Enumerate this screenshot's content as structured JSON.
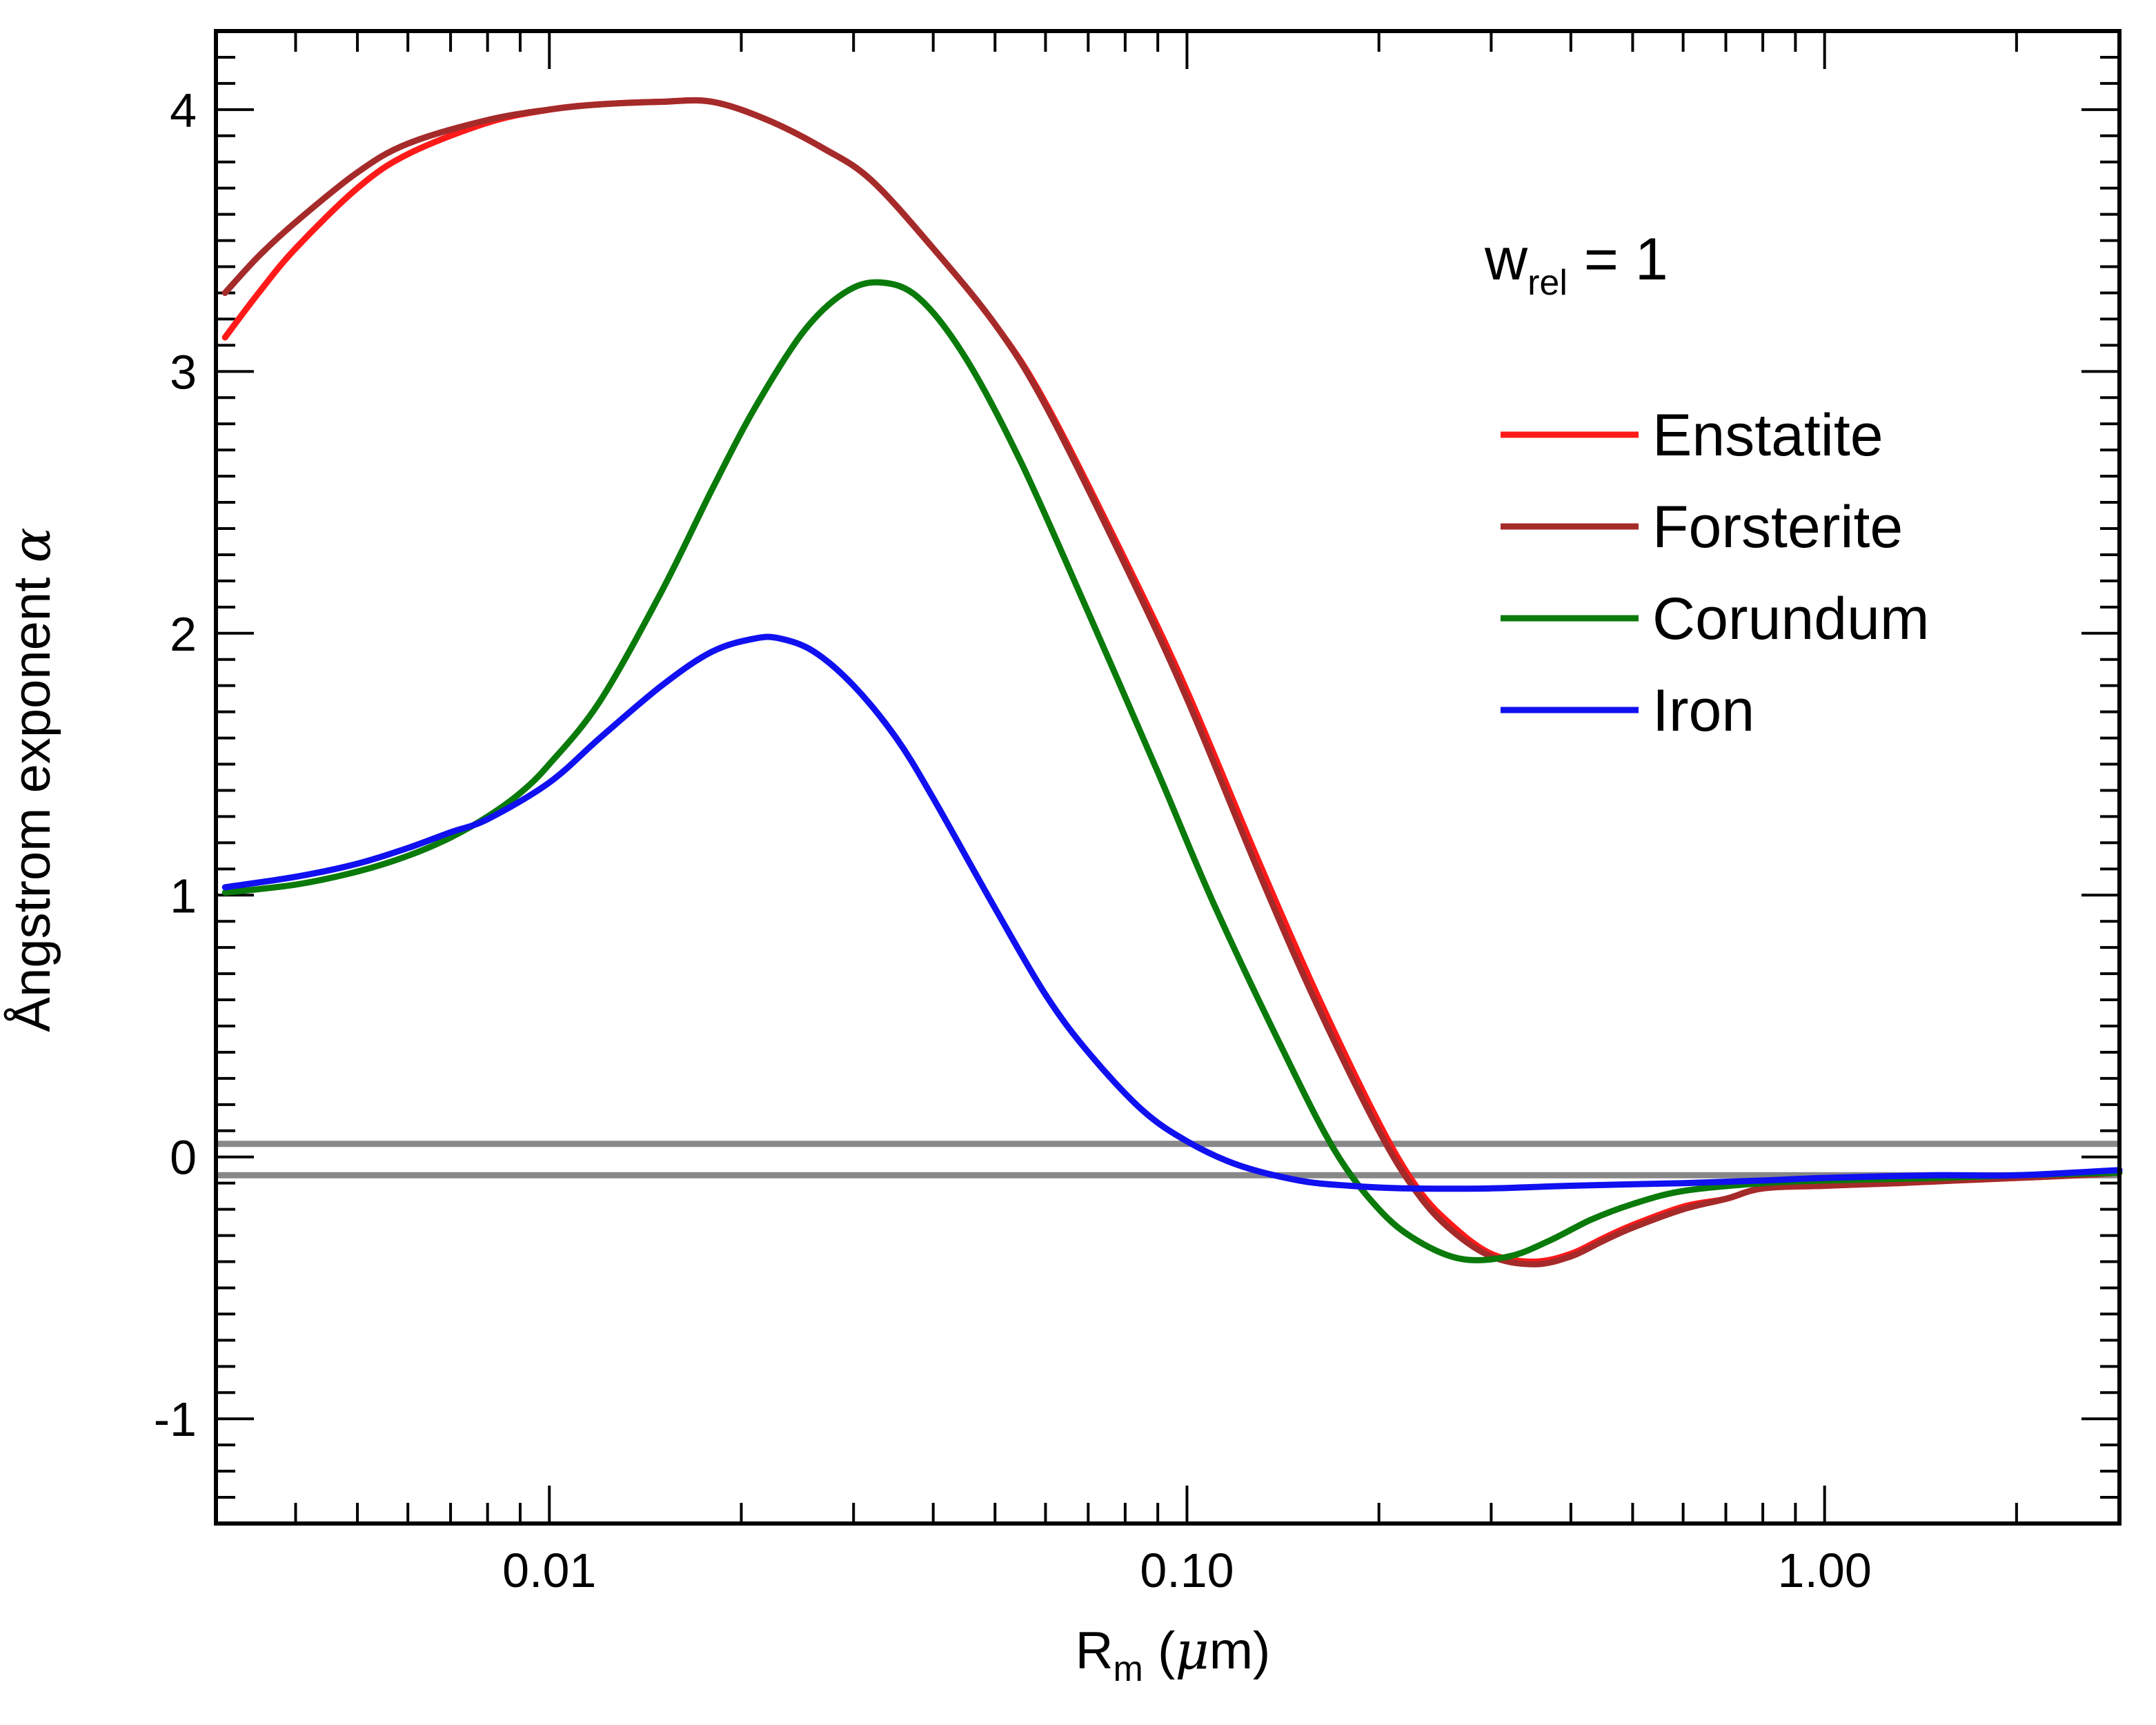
{
  "chart_data": {
    "type": "line",
    "title": "",
    "xlabel": {
      "main": "R",
      "sub": "m",
      "rest": " (",
      "mu": "μ",
      "unit": "m)"
    },
    "ylabel": {
      "text": "Ångstrom exponent ",
      "symbol": "α"
    },
    "xscale": "log",
    "xlim": [
      0.003,
      2.9
    ],
    "ylim": [
      -1.4,
      4.3
    ],
    "x_ticks": [
      {
        "value": 0.01,
        "label": "0.01"
      },
      {
        "value": 0.1,
        "label": "0.10"
      },
      {
        "value": 1.0,
        "label": "1.00"
      }
    ],
    "y_ticks": [
      {
        "value": -1,
        "label": "-1"
      },
      {
        "value": 0,
        "label": "0"
      },
      {
        "value": 1,
        "label": "1"
      },
      {
        "value": 2,
        "label": "2"
      },
      {
        "value": 3,
        "label": "3"
      },
      {
        "value": 4,
        "label": "4"
      }
    ],
    "annotation": {
      "main": "w",
      "sub": "rel",
      "rest": " = 1"
    },
    "legend_position": "top-right",
    "reference_lines": [
      {
        "y": 0.05,
        "color": "#888888"
      },
      {
        "y": -0.07,
        "color": "#888888"
      }
    ],
    "series": [
      {
        "name": "Enstatite",
        "color": "#ff1a1a",
        "x": [
          0.0031,
          0.0035,
          0.004,
          0.005,
          0.006,
          0.008,
          0.01,
          0.012,
          0.015,
          0.018,
          0.022,
          0.027,
          0.032,
          0.04,
          0.05,
          0.06,
          0.08,
          0.1,
          0.13,
          0.16,
          0.2,
          0.23,
          0.26,
          0.3,
          0.35,
          0.4,
          0.45,
          0.5,
          0.6,
          0.7,
          0.8,
          1.0,
          1.3,
          1.6,
          2.0,
          2.5,
          2.9
        ],
        "y": [
          3.13,
          3.3,
          3.47,
          3.7,
          3.83,
          3.95,
          4.0,
          4.02,
          4.03,
          4.03,
          3.96,
          3.85,
          3.73,
          3.47,
          3.18,
          2.88,
          2.28,
          1.78,
          1.12,
          0.62,
          0.13,
          -0.12,
          -0.26,
          -0.37,
          -0.4,
          -0.37,
          -0.31,
          -0.26,
          -0.19,
          -0.16,
          -0.12,
          -0.11,
          -0.1,
          -0.09,
          -0.08,
          -0.07,
          -0.06
        ]
      },
      {
        "name": "Forsterite",
        "color": "#a52a2a",
        "x": [
          0.0031,
          0.0035,
          0.004,
          0.005,
          0.006,
          0.008,
          0.01,
          0.012,
          0.015,
          0.018,
          0.022,
          0.027,
          0.032,
          0.04,
          0.05,
          0.06,
          0.08,
          0.1,
          0.13,
          0.16,
          0.2,
          0.23,
          0.26,
          0.3,
          0.35,
          0.4,
          0.45,
          0.5,
          0.6,
          0.7,
          0.8,
          1.0,
          1.3,
          1.6,
          2.0,
          2.5,
          2.9
        ],
        "y": [
          3.3,
          3.44,
          3.57,
          3.76,
          3.87,
          3.96,
          4.0,
          4.02,
          4.03,
          4.03,
          3.96,
          3.85,
          3.73,
          3.47,
          3.18,
          2.87,
          2.26,
          1.75,
          1.08,
          0.58,
          0.1,
          -0.14,
          -0.28,
          -0.38,
          -0.41,
          -0.38,
          -0.32,
          -0.27,
          -0.2,
          -0.16,
          -0.12,
          -0.11,
          -0.1,
          -0.09,
          -0.08,
          -0.07,
          -0.06
        ]
      },
      {
        "name": "Corundum",
        "color": "#0a7a0a",
        "x": [
          0.0031,
          0.004,
          0.005,
          0.006,
          0.007,
          0.008,
          0.009,
          0.01,
          0.012,
          0.015,
          0.018,
          0.021,
          0.025,
          0.029,
          0.033,
          0.038,
          0.045,
          0.055,
          0.07,
          0.09,
          0.11,
          0.14,
          0.17,
          0.2,
          0.23,
          0.27,
          0.32,
          0.37,
          0.43,
          0.5,
          0.6,
          0.8,
          1.0,
          1.5,
          2.0,
          2.9
        ],
        "y": [
          1.01,
          1.04,
          1.09,
          1.15,
          1.22,
          1.3,
          1.39,
          1.5,
          1.74,
          2.16,
          2.55,
          2.86,
          3.15,
          3.3,
          3.34,
          3.28,
          3.05,
          2.65,
          2.08,
          1.47,
          0.97,
          0.43,
          0.03,
          -0.2,
          -0.32,
          -0.39,
          -0.38,
          -0.32,
          -0.24,
          -0.18,
          -0.13,
          -0.1,
          -0.09,
          -0.08,
          -0.07,
          -0.06
        ]
      },
      {
        "name": "Iron",
        "color": "#1010f0",
        "x": [
          0.0031,
          0.004,
          0.005,
          0.006,
          0.007,
          0.008,
          0.01,
          0.012,
          0.015,
          0.018,
          0.021,
          0.023,
          0.026,
          0.03,
          0.035,
          0.04,
          0.05,
          0.06,
          0.07,
          0.085,
          0.1,
          0.12,
          0.15,
          0.18,
          0.22,
          0.3,
          0.4,
          0.6,
          0.8,
          1.0,
          1.5,
          2.0,
          2.9
        ],
        "y": [
          1.03,
          1.07,
          1.12,
          1.18,
          1.24,
          1.29,
          1.43,
          1.6,
          1.8,
          1.93,
          1.98,
          1.98,
          1.93,
          1.8,
          1.6,
          1.37,
          0.95,
          0.62,
          0.4,
          0.18,
          0.06,
          -0.03,
          -0.09,
          -0.11,
          -0.12,
          -0.12,
          -0.11,
          -0.1,
          -0.09,
          -0.08,
          -0.07,
          -0.07,
          -0.05
        ]
      }
    ]
  }
}
